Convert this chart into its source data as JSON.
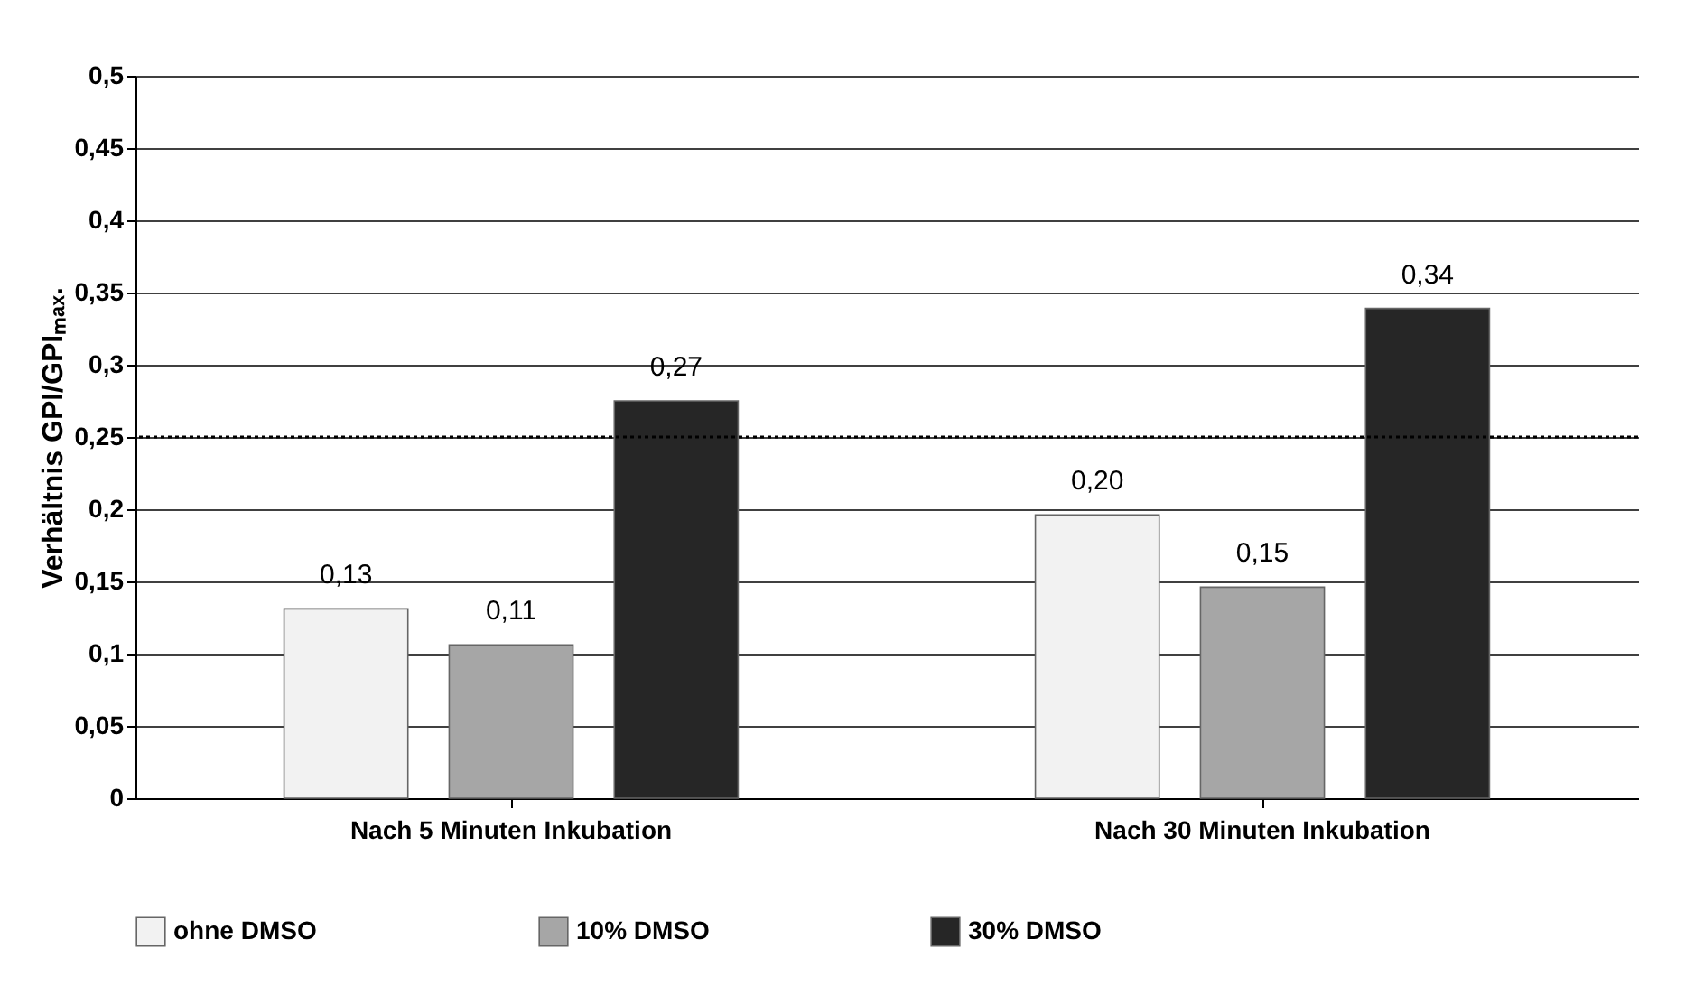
{
  "chart_data": {
    "type": "bar",
    "ylabel": "Verhältnis GPI/GPIₘₐₓ.",
    "categories": [
      "Nach 5 Minuten Inkubation",
      "Nach 30 Minuten Inkubation"
    ],
    "series": [
      {
        "name": "ohne DMSO",
        "color": "#f2f2f2",
        "values": [
          0.131,
          0.196
        ],
        "value_labels": [
          "0,13",
          "0,20"
        ]
      },
      {
        "name": "10% DMSO",
        "color": "#a6a6a6",
        "values": [
          0.106,
          0.146
        ],
        "value_labels": [
          "0,11",
          "0,15"
        ]
      },
      {
        "name": "30% DMSO",
        "color": "#262626",
        "values": [
          0.275,
          0.339
        ],
        "value_labels": [
          "0,27",
          "0,34"
        ]
      }
    ],
    "ylim": [
      0,
      0.5
    ],
    "yticks": [
      0,
      {
        "value": 0.05,
        "label": "0,05"
      },
      {
        "value": 0.1,
        "label": "0,1"
      },
      {
        "value": 0.15,
        "label": "0,15"
      },
      {
        "value": 0.2,
        "label": "0,2"
      },
      {
        "value": 0.25,
        "label": "0,25"
      },
      {
        "value": 0.3,
        "label": "0,3"
      },
      {
        "value": 0.35,
        "label": "0,35"
      },
      {
        "value": 0.4,
        "label": "0,4"
      },
      {
        "value": 0.45,
        "label": "0,45"
      },
      {
        "value": 0.5,
        "label": "0,5"
      }
    ],
    "ref_lines": [
      {
        "axis": "y",
        "value": 0.25,
        "line_style": "dotted",
        "color": "#000000"
      }
    ],
    "grid": "y",
    "legend": "bottom"
  }
}
